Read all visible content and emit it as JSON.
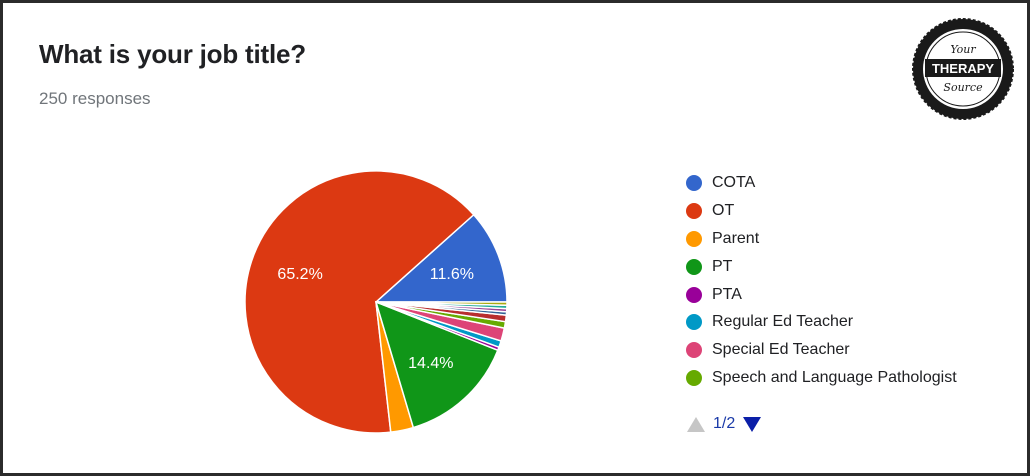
{
  "header": {
    "title": "What is your job title?",
    "responses": "250 responses"
  },
  "logo": {
    "line1": "Your",
    "line2": "THERAPY",
    "line3": "Source"
  },
  "pager": {
    "label": "1/2"
  },
  "chart_data": {
    "type": "pie",
    "title": "What is your job title?",
    "total_responses": 250,
    "slices": [
      {
        "label": "COTA",
        "value": 11.6,
        "color": "#3366cc",
        "shown_label": "11.6%"
      },
      {
        "label": "OT",
        "value": 65.2,
        "color": "#dc3912",
        "shown_label": "65.2%"
      },
      {
        "label": "Parent",
        "value": 2.8,
        "color": "#ff9900",
        "shown_label": ""
      },
      {
        "label": "PT",
        "value": 14.4,
        "color": "#109618",
        "shown_label": "14.4%"
      },
      {
        "label": "PTA",
        "value": 0.4,
        "color": "#990099",
        "shown_label": ""
      },
      {
        "label": "Regular Ed Teacher",
        "value": 0.8,
        "color": "#0099c6",
        "shown_label": ""
      },
      {
        "label": "Special Ed Teacher",
        "value": 1.6,
        "color": "#dd4477",
        "shown_label": ""
      },
      {
        "label": "Speech and Language Pathologist",
        "value": 0.8,
        "color": "#66aa00",
        "shown_label": ""
      },
      {
        "label": "",
        "value": 0.8,
        "color": "#b82e2e",
        "shown_label": ""
      },
      {
        "label": "",
        "value": 0.4,
        "color": "#316395",
        "shown_label": ""
      },
      {
        "label": "",
        "value": 0.4,
        "color": "#994499",
        "shown_label": ""
      },
      {
        "label": "",
        "value": 0.4,
        "color": "#22aa99",
        "shown_label": ""
      },
      {
        "label": "",
        "value": 0.4,
        "color": "#aaaa11",
        "shown_label": ""
      }
    ],
    "legend": [
      "COTA",
      "OT",
      "Parent",
      "PT",
      "PTA",
      "Regular Ed Teacher",
      "Special Ed Teacher",
      "Speech and Language Pathologist"
    ],
    "legend_placement": "right"
  }
}
